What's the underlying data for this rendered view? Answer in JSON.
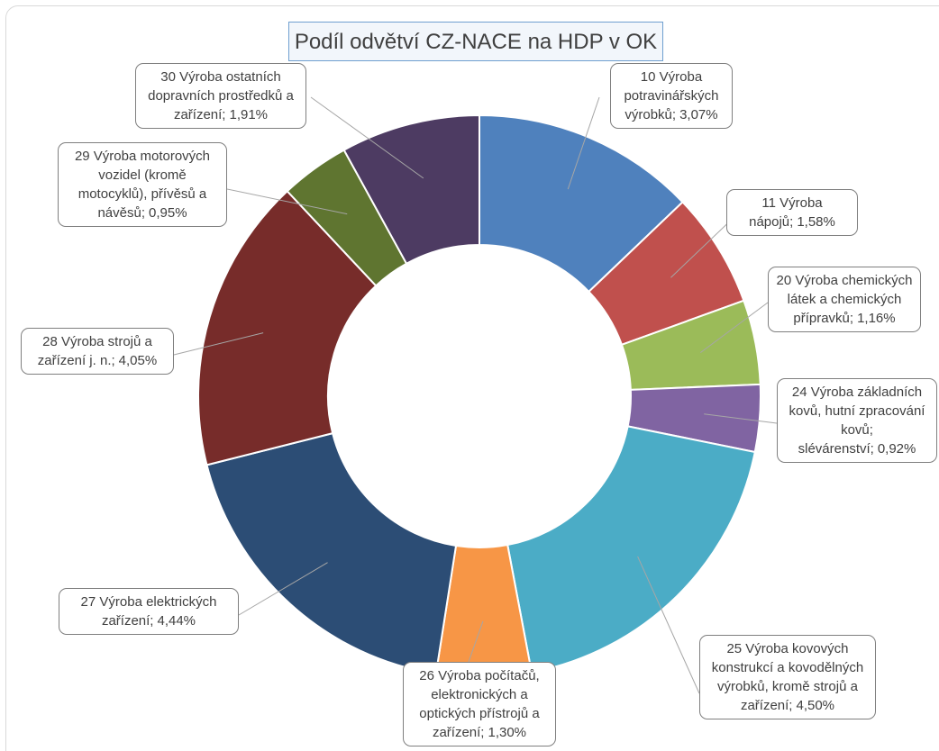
{
  "chart_data": {
    "type": "donut",
    "title": "Podíl odvětví CZ-NACE na HDP v OK",
    "categories": [
      "10 Výroba potravinářských výrobků;",
      "11 Výroba nápojů;",
      "20 Výroba chemických látek a chemických přípravků;",
      "24 Výroba základních kovů, hutní zpracování kovů; slévárenství;",
      "25 Výroba kovových konstrukcí a kovodělných výrobků, kromě strojů a zařízení;",
      "26 Výroba počítačů, elektronických a optických přístrojů a zařízení;",
      "27 Výroba elektrických zařízení;",
      "28 Výroba strojů a zařízení j. n.;",
      "29 Výroba motorových vozidel (kromě motocyklů), přívěsů a návěsů;",
      "30 Výroba ostatních dopravních prostředků a zařízení;"
    ],
    "values": [
      3.07,
      1.58,
      1.16,
      0.92,
      4.5,
      1.3,
      4.44,
      4.05,
      0.95,
      1.91
    ],
    "value_labels": [
      "3,07%",
      "1,58%",
      "1,16%",
      "0,92%",
      "4,50%",
      "1,30%",
      "4,44%",
      "4,05%",
      "0,95%",
      "1,91%"
    ],
    "colors": [
      "#4f81bd",
      "#c0504d",
      "#9bbb59",
      "#8064a2",
      "#4bacc6",
      "#f79646",
      "#2c4d75",
      "#772c2a",
      "#5f7530",
      "#4d3b62"
    ]
  }
}
